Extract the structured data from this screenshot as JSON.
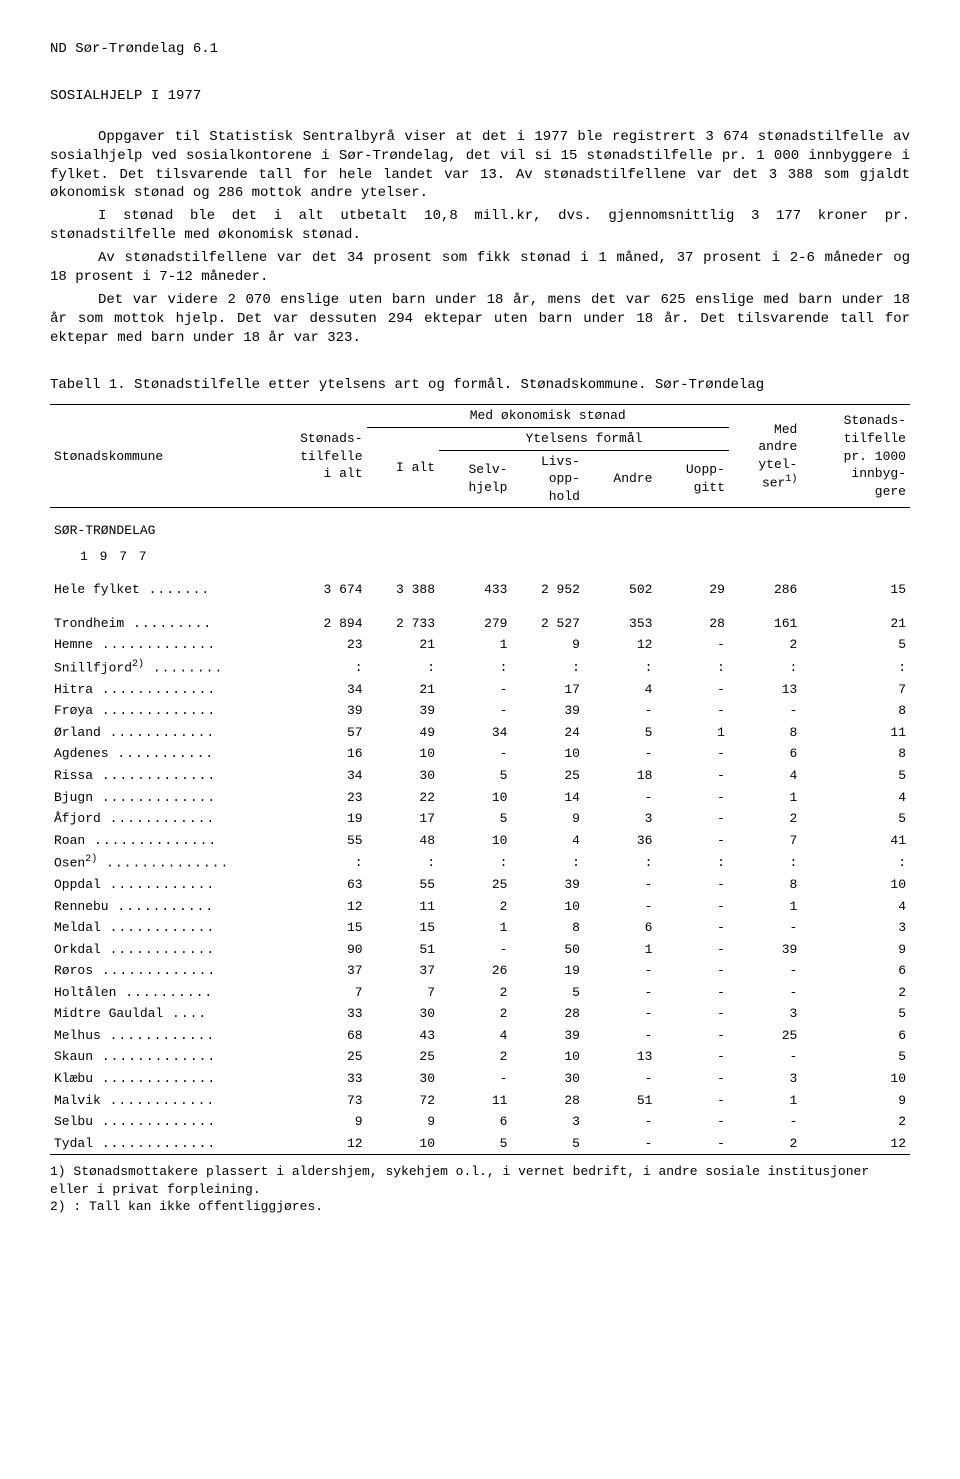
{
  "header": "ND Sør-Trøndelag 6.1",
  "title": "SOSIALHJELP I 1977",
  "paragraphs": [
    "Oppgaver til Statistisk Sentralbyrå viser at det i 1977 ble registrert 3 674 stønadstilfelle av sosialhjelp ved sosialkontorene i Sør-Trøndelag, det vil si 15 stønadstilfelle pr. 1 000 innbyggere i fylket. Det tilsvarende tall for hele landet var 13. Av stønadstilfellene var det 3 388 som gjaldt økonomisk stønad og 286 mottok andre ytelser.",
    "I stønad ble det i alt utbetalt 10,8 mill.kr, dvs. gjennomsnittlig 3 177 kroner pr. stønadstilfelle med økonomisk stønad.",
    "Av stønadstilfellene var det 34 prosent som fikk stønad i 1 måned, 37 prosent i 2-6 måneder og 18 prosent i 7-12 måneder.",
    "Det var videre 2 070 enslige uten barn under 18 år, mens det var 625 enslige med barn under 18 år som mottok hjelp. Det var dessuten 294 ektepar uten barn under 18 år. Det tilsvarende tall for ektepar med barn under 18 år var 323."
  ],
  "tableCaption": "Tabell 1.  Stønadstilfelle etter ytelsens art og formål.  Stønadskommune.  Sør-Trøndelag",
  "headers": {
    "stonadskommune": "Stønadskommune",
    "stonads_ialt": "Stønads-\ntilfelle\ni alt",
    "med_okon": "Med økonomisk stønad",
    "ialt": "I alt",
    "ytelsens": "Ytelsens formål",
    "selvhjelp": "Selv-\nhjelp",
    "livs": "Livs-\nopp-\nhold",
    "andre": "Andre",
    "uopp": "Uopp-\ngitt",
    "med_andre": "Med\nandre\nytel-\nser1)",
    "per1000": "Stønads-\ntilfelle\npr. 1000\ninnbyg-\ngere"
  },
  "region": "SØR-TRØNDELAG",
  "year": "1 9 7 7",
  "rows": [
    {
      "name": "Hele fylket",
      "suffix": "",
      "v": [
        "3 674",
        "3 388",
        "433",
        "2 952",
        "502",
        "29",
        "286",
        "15"
      ],
      "gap": true
    },
    {
      "name": "Trondheim",
      "suffix": "",
      "v": [
        "2 894",
        "2 733",
        "279",
        "2 527",
        "353",
        "28",
        "161",
        "21"
      ]
    },
    {
      "name": "Hemne",
      "suffix": "",
      "v": [
        "23",
        "21",
        "1",
        "9",
        "12",
        "-",
        "2",
        "5"
      ]
    },
    {
      "name": "Snillfjord",
      "suffix": "2)",
      "v": [
        ":",
        ":",
        ":",
        ":",
        ":",
        ":",
        ":",
        ":"
      ]
    },
    {
      "name": "Hitra",
      "suffix": "",
      "v": [
        "34",
        "21",
        "-",
        "17",
        "4",
        "-",
        "13",
        "7"
      ]
    },
    {
      "name": "Frøya",
      "suffix": "",
      "v": [
        "39",
        "39",
        "-",
        "39",
        "-",
        "-",
        "-",
        "8"
      ]
    },
    {
      "name": "Ørland",
      "suffix": "",
      "v": [
        "57",
        "49",
        "34",
        "24",
        "5",
        "1",
        "8",
        "11"
      ]
    },
    {
      "name": "Agdenes",
      "suffix": "",
      "v": [
        "16",
        "10",
        "-",
        "10",
        "-",
        "-",
        "6",
        "8"
      ]
    },
    {
      "name": "Rissa",
      "suffix": "",
      "v": [
        "34",
        "30",
        "5",
        "25",
        "18",
        "-",
        "4",
        "5"
      ]
    },
    {
      "name": "Bjugn",
      "suffix": "",
      "v": [
        "23",
        "22",
        "10",
        "14",
        "-",
        "-",
        "1",
        "4"
      ]
    },
    {
      "name": "Åfjord",
      "suffix": "",
      "v": [
        "19",
        "17",
        "5",
        "9",
        "3",
        "-",
        "2",
        "5"
      ]
    },
    {
      "name": "Roan",
      "suffix": "",
      "v": [
        "55",
        "48",
        "10",
        "4",
        "36",
        "-",
        "7",
        "41"
      ]
    },
    {
      "name": "Osen",
      "suffix": "2)",
      "v": [
        ":",
        ":",
        ":",
        ":",
        ":",
        ":",
        ":",
        ":"
      ]
    },
    {
      "name": "Oppdal",
      "suffix": "",
      "v": [
        "63",
        "55",
        "25",
        "39",
        "-",
        "-",
        "8",
        "10"
      ]
    },
    {
      "name": "Rennebu",
      "suffix": "",
      "v": [
        "12",
        "11",
        "2",
        "10",
        "-",
        "-",
        "1",
        "4"
      ]
    },
    {
      "name": "Meldal",
      "suffix": "",
      "v": [
        "15",
        "15",
        "1",
        "8",
        "6",
        "-",
        "-",
        "3"
      ]
    },
    {
      "name": "Orkdal",
      "suffix": "",
      "v": [
        "90",
        "51",
        "-",
        "50",
        "1",
        "-",
        "39",
        "9"
      ]
    },
    {
      "name": "Røros",
      "suffix": "",
      "v": [
        "37",
        "37",
        "26",
        "19",
        "-",
        "-",
        "-",
        "6"
      ]
    },
    {
      "name": "Holtålen",
      "suffix": "",
      "v": [
        "7",
        "7",
        "2",
        "5",
        "-",
        "-",
        "-",
        "2"
      ]
    },
    {
      "name": "Midtre Gauldal",
      "suffix": "",
      "v": [
        "33",
        "30",
        "2",
        "28",
        "-",
        "-",
        "3",
        "5"
      ]
    },
    {
      "name": "Melhus",
      "suffix": "",
      "v": [
        "68",
        "43",
        "4",
        "39",
        "-",
        "-",
        "25",
        "6"
      ]
    },
    {
      "name": "Skaun",
      "suffix": "",
      "v": [
        "25",
        "25",
        "2",
        "10",
        "13",
        "-",
        "-",
        "5"
      ]
    },
    {
      "name": "Klæbu",
      "suffix": "",
      "v": [
        "33",
        "30",
        "-",
        "30",
        "-",
        "-",
        "3",
        "10"
      ]
    },
    {
      "name": "Malvik",
      "suffix": "",
      "v": [
        "73",
        "72",
        "11",
        "28",
        "51",
        "-",
        "1",
        "9"
      ]
    },
    {
      "name": "Selbu",
      "suffix": "",
      "v": [
        "9",
        "9",
        "6",
        "3",
        "-",
        "-",
        "-",
        "2"
      ]
    },
    {
      "name": "Tydal",
      "suffix": "",
      "v": [
        "12",
        "10",
        "5",
        "5",
        "-",
        "-",
        "2",
        "12"
      ]
    }
  ],
  "footnotes": [
    "1) Stønadsmottakere plassert i aldershjem, sykehjem o.l., i vernet bedrift, i andre sosiale institusjoner eller i privat forpleining.",
    "2) : Tall kan ikke offentliggjøres."
  ]
}
